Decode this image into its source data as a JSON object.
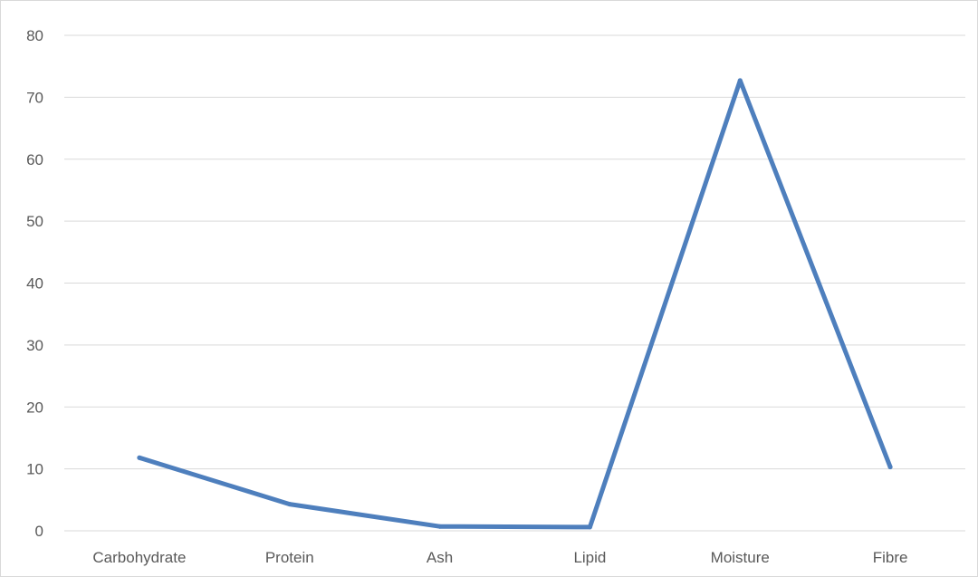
{
  "chart_data": {
    "type": "line",
    "title": "",
    "xlabel": "",
    "ylabel": "",
    "categories": [
      "Carbohydrate",
      "Protein",
      "Ash",
      "Lipid",
      "Moisture",
      "Fibre"
    ],
    "series": [
      {
        "values": [
          11.8,
          4.3,
          0.7,
          0.6,
          72.7,
          10.3
        ],
        "color": "#4e7fbd"
      }
    ],
    "ylim": [
      0,
      80
    ],
    "yticks": [
      0,
      10,
      20,
      30,
      40,
      50,
      60,
      70,
      80
    ],
    "grid": true,
    "legend": "none",
    "colors": {
      "gridline": "#d9d9d9",
      "tick_text": "#595959",
      "border": "#d9d9d9"
    }
  }
}
